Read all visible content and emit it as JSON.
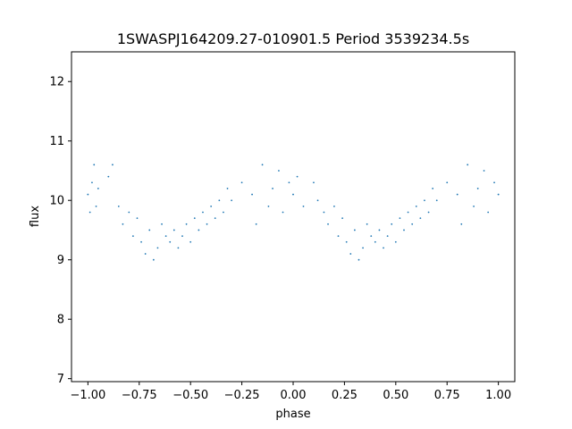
{
  "chart_data": {
    "type": "scatter",
    "title": "1SWASPJ164209.27-010901.5 Period 3539234.5s",
    "xlabel": "phase",
    "ylabel": "flux",
    "xlim": [
      -1.08,
      1.08
    ],
    "ylim": [
      6.95,
      12.5
    ],
    "xticks": [
      -1.0,
      -0.75,
      -0.5,
      -0.25,
      0.0,
      0.25,
      0.5,
      0.75,
      1.0
    ],
    "xtick_labels": [
      "−1.00",
      "−0.75",
      "−0.50",
      "−0.25",
      "0.00",
      "0.25",
      "0.50",
      "0.75",
      "1.00"
    ],
    "yticks": [
      7,
      8,
      9,
      10,
      11,
      12
    ],
    "ytick_labels": [
      "7",
      "8",
      "9",
      "10",
      "11",
      "12"
    ],
    "grid": false,
    "legend": "none",
    "series": [
      {
        "marker_color": "#1f77b4",
        "points": [
          [
            -1.0,
            10.1
          ],
          [
            -0.98,
            10.3
          ],
          [
            -0.96,
            9.9
          ],
          [
            -0.97,
            10.6
          ],
          [
            -0.99,
            9.8
          ],
          [
            -0.95,
            10.2
          ],
          [
            -0.9,
            10.4
          ],
          [
            -0.88,
            10.6
          ],
          [
            -0.85,
            9.9
          ],
          [
            -0.83,
            9.6
          ],
          [
            -0.8,
            9.8
          ],
          [
            -0.78,
            9.4
          ],
          [
            -0.76,
            9.7
          ],
          [
            -0.74,
            9.3
          ],
          [
            -0.72,
            9.1
          ],
          [
            -0.7,
            9.5
          ],
          [
            -0.68,
            9.0
          ],
          [
            -0.66,
            9.2
          ],
          [
            -0.64,
            9.6
          ],
          [
            -0.62,
            9.4
          ],
          [
            -0.6,
            9.3
          ],
          [
            -0.58,
            9.5
          ],
          [
            -0.56,
            9.2
          ],
          [
            -0.54,
            9.4
          ],
          [
            -0.52,
            9.6
          ],
          [
            -0.5,
            9.3
          ],
          [
            -0.48,
            9.7
          ],
          [
            -0.46,
            9.5
          ],
          [
            -0.44,
            9.8
          ],
          [
            -0.42,
            9.6
          ],
          [
            -0.4,
            9.9
          ],
          [
            -0.38,
            9.7
          ],
          [
            -0.36,
            10.0
          ],
          [
            -0.34,
            9.8
          ],
          [
            -0.32,
            10.2
          ],
          [
            -0.3,
            10.0
          ],
          [
            -0.25,
            10.3
          ],
          [
            -0.2,
            10.1
          ],
          [
            -0.18,
            9.6
          ],
          [
            -0.15,
            10.6
          ],
          [
            -0.12,
            9.9
          ],
          [
            -0.1,
            10.2
          ],
          [
            -0.07,
            10.5
          ],
          [
            -0.05,
            9.8
          ],
          [
            -0.02,
            10.3
          ],
          [
            0.0,
            10.1
          ],
          [
            0.02,
            10.4
          ],
          [
            0.05,
            9.9
          ],
          [
            0.1,
            10.3
          ],
          [
            0.12,
            10.0
          ],
          [
            0.15,
            9.8
          ],
          [
            0.17,
            9.6
          ],
          [
            0.2,
            9.9
          ],
          [
            0.22,
            9.4
          ],
          [
            0.24,
            9.7
          ],
          [
            0.26,
            9.3
          ],
          [
            0.28,
            9.1
          ],
          [
            0.3,
            9.5
          ],
          [
            0.32,
            9.0
          ],
          [
            0.34,
            9.2
          ],
          [
            0.36,
            9.6
          ],
          [
            0.38,
            9.4
          ],
          [
            0.4,
            9.3
          ],
          [
            0.42,
            9.5
          ],
          [
            0.44,
            9.2
          ],
          [
            0.46,
            9.4
          ],
          [
            0.48,
            9.6
          ],
          [
            0.5,
            9.3
          ],
          [
            0.52,
            9.7
          ],
          [
            0.54,
            9.5
          ],
          [
            0.56,
            9.8
          ],
          [
            0.58,
            9.6
          ],
          [
            0.6,
            9.9
          ],
          [
            0.62,
            9.7
          ],
          [
            0.64,
            10.0
          ],
          [
            0.66,
            9.8
          ],
          [
            0.68,
            10.2
          ],
          [
            0.7,
            10.0
          ],
          [
            0.75,
            10.3
          ],
          [
            0.8,
            10.1
          ],
          [
            0.82,
            9.6
          ],
          [
            0.85,
            10.6
          ],
          [
            0.88,
            9.9
          ],
          [
            0.9,
            10.2
          ],
          [
            0.93,
            10.5
          ],
          [
            0.95,
            9.8
          ],
          [
            0.98,
            10.3
          ],
          [
            1.0,
            10.1
          ]
        ]
      }
    ]
  }
}
